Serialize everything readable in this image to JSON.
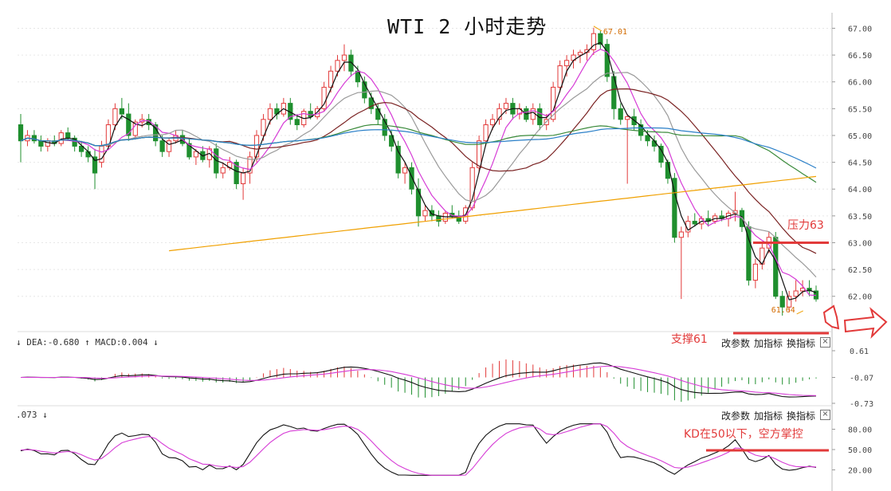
{
  "chart_data": [
    {
      "type": "candlestick",
      "title": "WTI 2 小时走势",
      "y_ticks": [
        "67.00",
        "66.50",
        "66.00",
        "65.50",
        "65.00",
        "64.50",
        "64.00",
        "63.50",
        "63.00",
        "62.50",
        "62.00"
      ],
      "ylim": [
        61.55,
        67.2
      ],
      "high_label": "67.01",
      "low_label": "61.64",
      "candles": [
        [
          65.2,
          65.4,
          64.5,
          64.9
        ],
        [
          64.9,
          65.1,
          64.8,
          65.0
        ],
        [
          65.0,
          65.1,
          64.85,
          64.9
        ],
        [
          64.9,
          65.0,
          64.7,
          64.8
        ],
        [
          64.8,
          64.95,
          64.7,
          64.9
        ],
        [
          64.9,
          65.0,
          64.8,
          64.85
        ],
        [
          64.85,
          65.1,
          64.8,
          65.05
        ],
        [
          65.05,
          65.15,
          64.9,
          64.95
        ],
        [
          64.95,
          65.0,
          64.7,
          64.8
        ],
        [
          64.8,
          64.9,
          64.6,
          64.7
        ],
        [
          64.7,
          64.8,
          64.5,
          64.6
        ],
        [
          64.6,
          64.75,
          64.0,
          64.3
        ],
        [
          64.5,
          64.9,
          64.4,
          64.8
        ],
        [
          64.8,
          65.3,
          64.75,
          65.2
        ],
        [
          65.2,
          65.6,
          65.1,
          65.5
        ],
        [
          65.5,
          65.7,
          65.3,
          65.4
        ],
        [
          65.4,
          65.6,
          64.9,
          65.0
        ],
        [
          65.0,
          65.3,
          64.95,
          65.25
        ],
        [
          65.25,
          65.4,
          65.15,
          65.3
        ],
        [
          65.3,
          65.4,
          65.1,
          65.2
        ],
        [
          65.2,
          65.25,
          64.8,
          64.9
        ],
        [
          64.9,
          65.0,
          64.6,
          64.7
        ],
        [
          64.7,
          64.95,
          64.6,
          64.9
        ],
        [
          64.9,
          65.1,
          64.85,
          65.0
        ],
        [
          65.0,
          65.1,
          64.8,
          64.85
        ],
        [
          64.85,
          64.95,
          64.55,
          64.6
        ],
        [
          64.6,
          64.75,
          64.45,
          64.7
        ],
        [
          64.7,
          64.8,
          64.5,
          64.55
        ],
        [
          64.55,
          64.8,
          64.4,
          64.75
        ],
        [
          64.75,
          64.85,
          64.2,
          64.3
        ],
        [
          64.3,
          64.5,
          64.2,
          64.4
        ],
        [
          64.4,
          64.6,
          64.35,
          64.5
        ],
        [
          64.5,
          64.55,
          64.0,
          64.1
        ],
        [
          64.1,
          64.4,
          63.8,
          64.3
        ],
        [
          64.3,
          64.7,
          64.1,
          64.6
        ],
        [
          64.6,
          65.1,
          64.5,
          65.0
        ],
        [
          65.0,
          65.4,
          64.9,
          65.3
        ],
        [
          65.3,
          65.6,
          65.2,
          65.5
        ],
        [
          65.5,
          65.6,
          65.3,
          65.4
        ],
        [
          65.4,
          65.7,
          65.35,
          65.6
        ],
        [
          65.6,
          65.7,
          65.2,
          65.3
        ],
        [
          65.3,
          65.4,
          65.1,
          65.2
        ],
        [
          65.2,
          65.5,
          65.15,
          65.45
        ],
        [
          65.45,
          65.6,
          65.3,
          65.35
        ],
        [
          65.35,
          65.55,
          65.3,
          65.5
        ],
        [
          65.5,
          66.0,
          65.45,
          65.9
        ],
        [
          65.9,
          66.3,
          65.8,
          66.2
        ],
        [
          66.2,
          66.5,
          66.1,
          66.4
        ],
        [
          66.4,
          66.7,
          66.2,
          66.5
        ],
        [
          66.5,
          66.6,
          66.1,
          66.2
        ],
        [
          66.2,
          66.3,
          65.9,
          66.0
        ],
        [
          66.0,
          66.1,
          65.6,
          65.7
        ],
        [
          65.7,
          65.8,
          65.4,
          65.5
        ],
        [
          65.5,
          65.6,
          65.2,
          65.3
        ],
        [
          65.3,
          65.4,
          64.9,
          65.0
        ],
        [
          65.0,
          65.1,
          64.7,
          64.8
        ],
        [
          64.8,
          64.9,
          64.2,
          64.3
        ],
        [
          64.3,
          64.5,
          64.1,
          64.4
        ],
        [
          64.4,
          64.5,
          63.9,
          64.0
        ],
        [
          64.0,
          64.2,
          63.3,
          63.5
        ],
        [
          63.5,
          63.7,
          63.4,
          63.6
        ],
        [
          63.6,
          63.7,
          63.4,
          63.5
        ],
        [
          63.5,
          63.6,
          63.3,
          63.4
        ],
        [
          63.4,
          63.6,
          63.35,
          63.55
        ],
        [
          63.55,
          63.7,
          63.45,
          63.5
        ],
        [
          63.5,
          63.6,
          63.35,
          63.4
        ],
        [
          63.4,
          63.7,
          63.35,
          63.65
        ],
        [
          63.65,
          64.5,
          63.6,
          64.4
        ],
        [
          64.4,
          65.0,
          64.3,
          64.9
        ],
        [
          64.9,
          65.3,
          64.8,
          65.2
        ],
        [
          65.2,
          65.4,
          65.1,
          65.3
        ],
        [
          65.3,
          65.6,
          65.2,
          65.5
        ],
        [
          65.5,
          65.7,
          65.4,
          65.6
        ],
        [
          65.6,
          65.7,
          65.3,
          65.4
        ],
        [
          65.4,
          65.6,
          65.3,
          65.5
        ],
        [
          65.5,
          65.55,
          65.25,
          65.3
        ],
        [
          65.3,
          65.6,
          65.2,
          65.5
        ],
        [
          65.5,
          65.6,
          65.1,
          65.2
        ],
        [
          65.2,
          65.4,
          65.1,
          65.3
        ],
        [
          65.3,
          66.0,
          65.25,
          65.9
        ],
        [
          65.9,
          66.4,
          65.8,
          66.3
        ],
        [
          66.3,
          66.5,
          66.1,
          66.4
        ],
        [
          66.4,
          66.6,
          66.25,
          66.5
        ],
        [
          66.5,
          66.6,
          66.35,
          66.55
        ],
        [
          66.55,
          66.7,
          66.4,
          66.6
        ],
        [
          66.6,
          67.01,
          66.5,
          66.9
        ],
        [
          66.9,
          66.95,
          66.6,
          66.7
        ],
        [
          66.7,
          66.8,
          66.0,
          66.1
        ],
        [
          66.1,
          66.2,
          65.3,
          65.5
        ],
        [
          65.5,
          65.6,
          65.2,
          65.3
        ],
        [
          65.3,
          65.4,
          64.1,
          65.35
        ],
        [
          65.35,
          65.5,
          65.1,
          65.2
        ],
        [
          65.2,
          65.3,
          64.9,
          65.0
        ],
        [
          65.0,
          65.1,
          64.8,
          64.9
        ],
        [
          64.9,
          65.0,
          64.7,
          64.8
        ],
        [
          64.8,
          64.85,
          64.4,
          64.5
        ],
        [
          64.5,
          64.55,
          64.1,
          64.2
        ],
        [
          64.2,
          64.3,
          63.0,
          63.1
        ],
        [
          63.1,
          63.3,
          61.95,
          63.2
        ],
        [
          63.2,
          63.5,
          63.1,
          63.4
        ],
        [
          63.4,
          63.55,
          63.3,
          63.35
        ],
        [
          63.35,
          63.5,
          63.25,
          63.45
        ],
        [
          63.45,
          63.6,
          63.3,
          63.4
        ],
        [
          63.4,
          63.55,
          63.35,
          63.5
        ],
        [
          63.5,
          63.6,
          63.4,
          63.45
        ],
        [
          63.45,
          63.6,
          63.3,
          63.55
        ],
        [
          63.55,
          63.95,
          63.4,
          63.6
        ],
        [
          63.6,
          63.65,
          63.2,
          63.3
        ],
        [
          63.3,
          63.4,
          62.2,
          62.3
        ],
        [
          62.3,
          62.7,
          62.15,
          62.6
        ],
        [
          62.6,
          63.0,
          62.5,
          62.9
        ],
        [
          62.9,
          63.2,
          62.8,
          63.1
        ],
        [
          63.1,
          63.2,
          61.95,
          62.0
        ],
        [
          62.0,
          62.1,
          61.64,
          61.8
        ],
        [
          61.8,
          62.1,
          61.7,
          62.0
        ],
        [
          62.0,
          62.3,
          61.9,
          62.1
        ],
        [
          62.1,
          62.3,
          62.0,
          62.15
        ],
        [
          62.15,
          62.3,
          62.0,
          62.1
        ],
        [
          62.1,
          62.2,
          61.9,
          61.95
        ]
      ]
    },
    {
      "type": "bar+line",
      "label_prefix": "↓ DEA:-0.680 ↑ MACD:0.004 ↓",
      "y_ticks": [
        "0.61",
        "-0.07",
        "-0.73"
      ]
    },
    {
      "type": "line",
      "label_prefix": ".073 ↓",
      "y_ticks": [
        "80.00",
        "50.00",
        "20.00"
      ]
    }
  ],
  "annotations": {
    "resistance": "压力63",
    "support": "支撑61",
    "kd_note": "KD在50以下，空方掌控"
  },
  "toolbar": {
    "modify_params": "改参数",
    "add_indicator": "加指标",
    "switch_indicator": "换指标",
    "close": "×"
  },
  "colors": {
    "up": "#e23a3a",
    "down": "#1f8f2e",
    "ma_black": "#111111",
    "ma_magenta": "#d63cd6",
    "ma_gray": "#9a9a9a",
    "ma_maroon": "#7a2222",
    "ma_green": "#3a8a3a",
    "ma_blue": "#2a7fc8",
    "ma_orange": "#f0a000",
    "annotation": "#e23a3a"
  }
}
